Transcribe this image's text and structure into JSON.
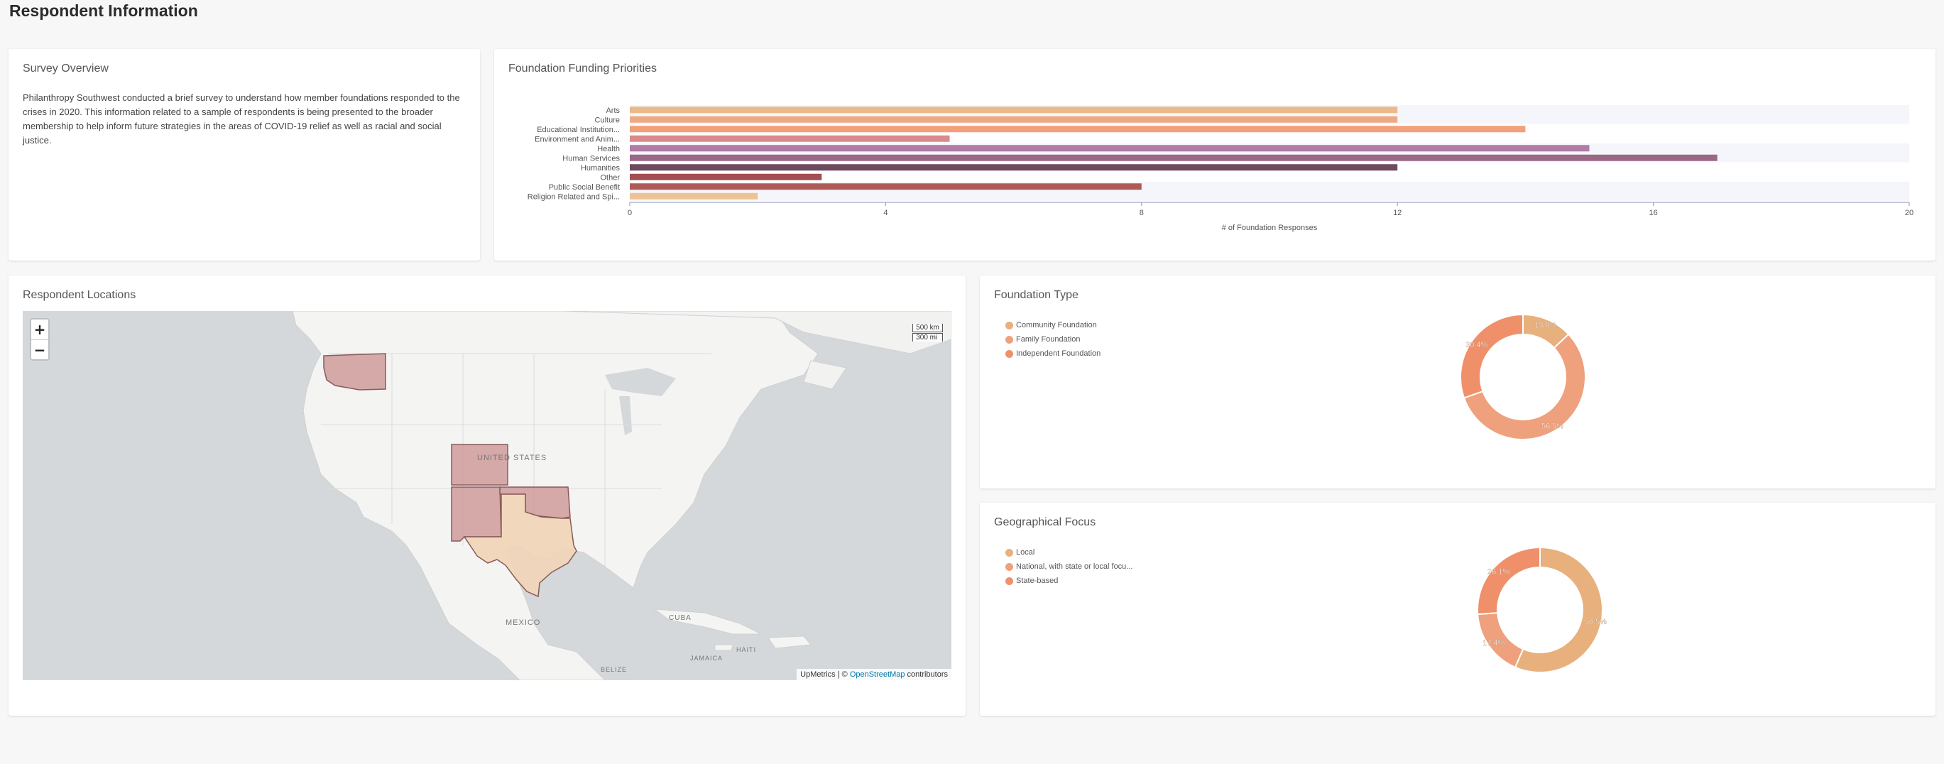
{
  "page": {
    "title": "Respondent Information"
  },
  "overview": {
    "title": "Survey Overview",
    "text": "Philanthropy Southwest conducted a brief survey to understand how member foundations responded to the crises in 2020. This information related to a sample of respondents is being presented to the broader membership to help inform future strategies in the areas of COVID-19 relief as well as racial and social justice."
  },
  "funding": {
    "title": "Foundation Funding Priorities",
    "chart_data": {
      "type": "bar",
      "orientation": "horizontal",
      "categories": [
        "Arts",
        "Culture",
        "Educational Institution...",
        "Environment and Anim...",
        "Health",
        "Human Services",
        "Humanities",
        "Other",
        "Public Social Benefit",
        "Religion Related and Spi..."
      ],
      "values": [
        12,
        12,
        14,
        5,
        15,
        17,
        12,
        3,
        8,
        2
      ],
      "colors": [
        "#e9b98a",
        "#efa982",
        "#f2a07a",
        "#d98a8a",
        "#b27aa6",
        "#9b6787",
        "#6e4a5e",
        "#a34e52",
        "#b05a58",
        "#efc294"
      ],
      "xlabel": "# of Foundation Responses",
      "xlim": [
        0,
        20
      ],
      "xticks": [
        0,
        4,
        8,
        12,
        16,
        20
      ]
    }
  },
  "locations": {
    "title": "Respondent Locations",
    "zoom_in": "+",
    "zoom_out": "−",
    "scale_km": "500 km",
    "scale_mi": "300 mi",
    "labels": {
      "us": "UNITED STATES",
      "mexico": "MEXICO",
      "cuba": "CUBA",
      "jamaica": "JAMAICA",
      "haiti": "HAITI",
      "belize": "BELIZE"
    },
    "attribution_prefix": "UpMetrics | © ",
    "attribution_link": "OpenStreetMap",
    "attribution_suffix": " contributors"
  },
  "ftype": {
    "title": "Foundation Type",
    "chart_data": {
      "type": "pie",
      "donut": true,
      "labels": [
        "Community Foundation",
        "Family Foundation",
        "Independent Foundation"
      ],
      "values": [
        13.0,
        56.5,
        30.4
      ],
      "value_labels": [
        "13.0%",
        "56.5%",
        "30.4%"
      ],
      "colors": [
        "#e8b07c",
        "#efa07c",
        "#f0906a"
      ]
    }
  },
  "geo": {
    "title": "Geographical Focus",
    "chart_data": {
      "type": "pie",
      "donut": true,
      "labels": [
        "Local",
        "National, with state or local focu...",
        "State-based"
      ],
      "values": [
        56.5,
        17.4,
        26.1
      ],
      "value_labels": [
        "56.5%",
        "17.4%",
        "26.1%"
      ],
      "colors": [
        "#e8b07c",
        "#efa07c",
        "#f0906a"
      ]
    }
  }
}
